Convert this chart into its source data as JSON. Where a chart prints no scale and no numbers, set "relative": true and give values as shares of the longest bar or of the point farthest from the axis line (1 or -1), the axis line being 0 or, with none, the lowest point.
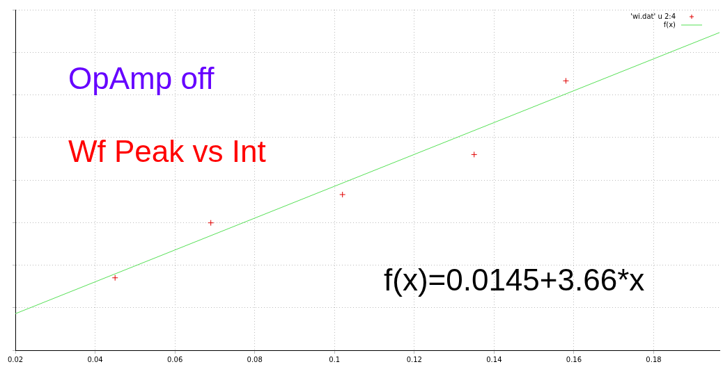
{
  "chart_data": {
    "type": "scatter",
    "relative": true,
    "xlim": [
      0.02,
      0.1965
    ],
    "xticks": [
      {
        "value": 0.02,
        "label": "0.02"
      },
      {
        "value": 0.04,
        "label": "0.04"
      },
      {
        "value": 0.06,
        "label": "0.06"
      },
      {
        "value": 0.08,
        "label": "0.08"
      },
      {
        "value": 0.1,
        "label": "0.1"
      },
      {
        "value": 0.12,
        "label": "0.12"
      },
      {
        "value": 0.14,
        "label": "0.14"
      },
      {
        "value": 0.16,
        "label": "0.16"
      },
      {
        "value": 0.18,
        "label": "0.18"
      }
    ],
    "grid": true,
    "legend": "top right",
    "tick_labels": "x",
    "series": [
      {
        "name": "'wi.dat' u 2:4",
        "type": "scatter",
        "marker": "cross",
        "color": "#e00000",
        "x": [
          0.045,
          0.069,
          0.102,
          0.135,
          0.158
        ],
        "values": [
          0.228,
          0.401,
          0.49,
          0.616,
          0.848
        ]
      },
      {
        "name": "f(x)",
        "type": "line",
        "marker": "none",
        "color": "#55e055",
        "x": [
          0.02,
          0.1965
        ],
        "values": [
          0.115,
          1
        ]
      }
    ],
    "annotations": [
      "OpAmp off",
      "Wf Peak vs Int",
      "f(x)=0.0145+3.66*x"
    ]
  }
}
